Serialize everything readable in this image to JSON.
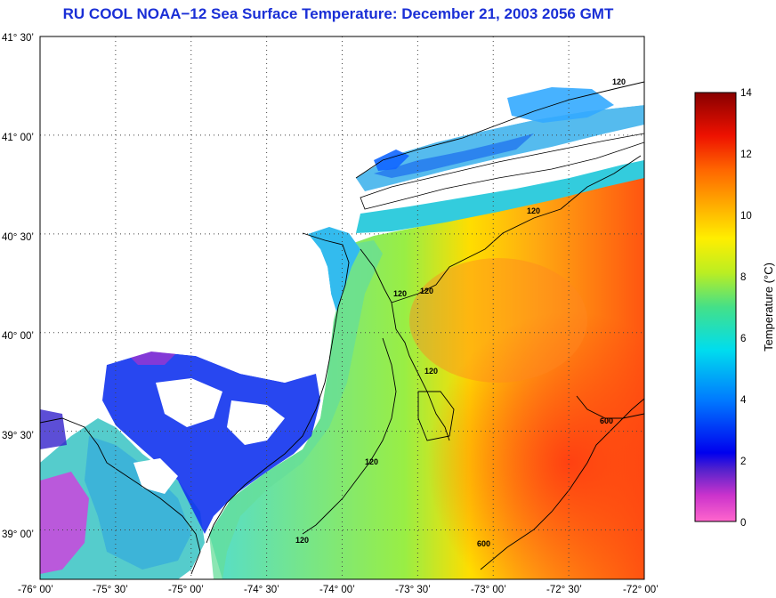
{
  "title": "RU COOL  NOAA−12  Sea Surface Temperature:  December 21, 2003 2056 GMT",
  "colors": {
    "title": "#1a2fd6",
    "land": "#ffffff",
    "coast": "#000000",
    "grid": "#444444"
  },
  "map": {
    "lon_range": [
      -76.0,
      -72.0
    ],
    "lat_range": [
      38.75,
      41.5
    ],
    "x_tick_labels": [
      "-76° 00’",
      "-75° 30’",
      "-75° 00’",
      "-74° 30’",
      "-74° 00’",
      "-73° 30’",
      "-73° 00’",
      "-72° 30’",
      "-72° 00’"
    ],
    "y_tick_labels": [
      "41° 30’",
      "41° 00’",
      "40° 30’",
      "40° 00’",
      "39° 30’",
      "39° 00’"
    ],
    "contour_labels": [
      "120",
      "120",
      "120",
      "120",
      "120",
      "120",
      "120",
      "600",
      "600"
    ]
  },
  "colorbar": {
    "title": "Temperature (°C)",
    "tick_labels": [
      "14",
      "12",
      "10",
      "8",
      "6",
      "4",
      "2",
      "0"
    ],
    "range": [
      0,
      14
    ]
  }
}
